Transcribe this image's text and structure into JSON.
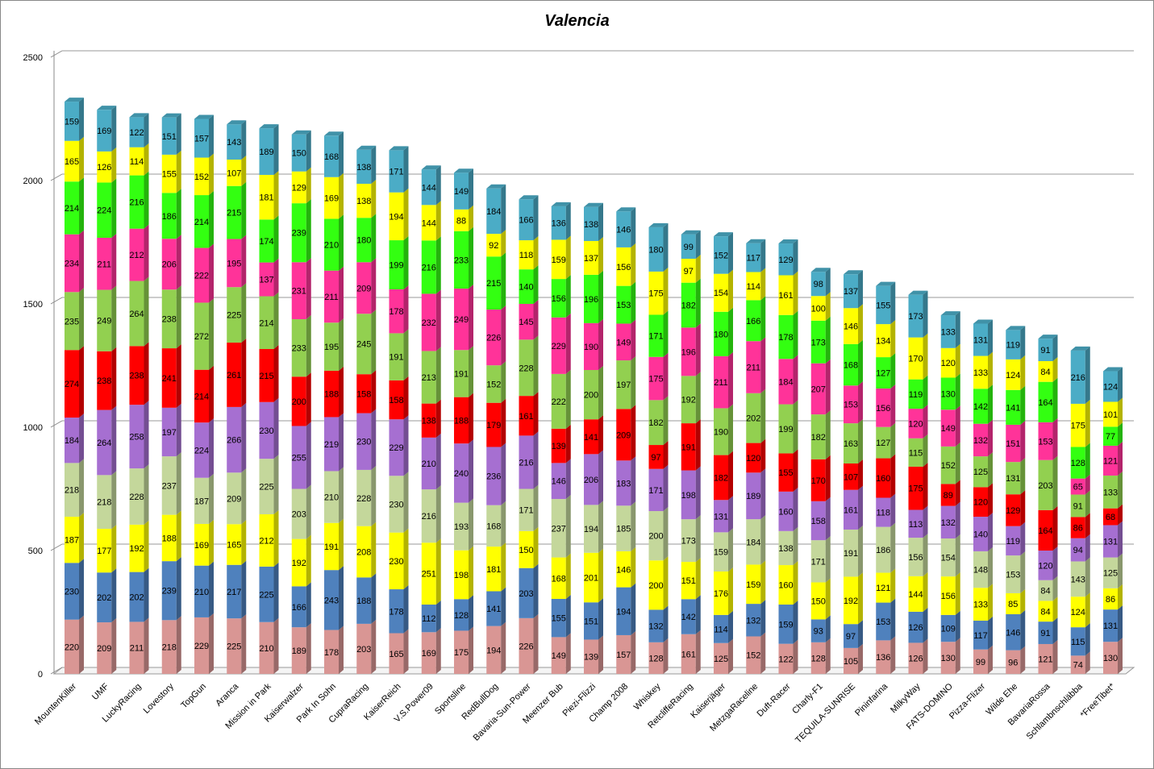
{
  "chart_data": {
    "type": "bar",
    "stacked": true,
    "style": "3d-stacked-column",
    "title": "Valencia",
    "xlabel": "",
    "ylabel": "",
    "ylim": [
      0,
      2500
    ],
    "yticks": [
      0,
      500,
      1000,
      1500,
      2000,
      2500
    ],
    "grid": true,
    "legend": "none",
    "categories": [
      "MountenKiller",
      "UMF",
      "LuckyRacing",
      "Lovestory",
      "TopGun",
      "Aranca",
      "Mission in Park",
      "Kaiserwalzer",
      "Park In Sohn",
      "CupraRacing",
      "KaiserReich",
      "V.S.Power09",
      "Sportsline",
      "RedBullDog",
      "Bavaria-Sun-Power",
      "Meenzer Bub",
      "Piezi-Flizzi",
      "Champ 2008",
      "Whiskey",
      "RetcliffeRacing",
      "Kaiserjäger",
      "MetzgaRaceline",
      "Duft-Racer",
      "Charly-F1",
      "TEQUILA-SUNRISE",
      "Pininfarina",
      "MilkyWay",
      "FATS-DOMINO",
      "Pizza-Flizer",
      "Wilde Ehe",
      "BavariaRossa",
      "Schlambnschläbba",
      "*FreeTibet*"
    ],
    "segment_colors": [
      "#d99694",
      "#4f81bd",
      "#ffff00",
      "#c4d79b",
      "#a66fd1",
      "#ff0000",
      "#92d050",
      "#ff3399",
      "#33ff11",
      "#ffff00",
      "#4bacc6"
    ],
    "stacks": [
      [
        220,
        230,
        187,
        218,
        184,
        274,
        235,
        234,
        214,
        165,
        159
      ],
      [
        209,
        202,
        177,
        218,
        264,
        238,
        249,
        211,
        224,
        126,
        169
      ],
      [
        211,
        202,
        192,
        228,
        258,
        238,
        264,
        212,
        216,
        114,
        122
      ],
      [
        218,
        239,
        188,
        237,
        197,
        241,
        238,
        206,
        186,
        155,
        151
      ],
      [
        229,
        210,
        169,
        187,
        224,
        214,
        272,
        222,
        214,
        152,
        157
      ],
      [
        225,
        217,
        165,
        209,
        266,
        261,
        225,
        195,
        215,
        107,
        143
      ],
      [
        210,
        225,
        212,
        225,
        230,
        215,
        214,
        137,
        174,
        181,
        189
      ],
      [
        189,
        166,
        192,
        203,
        255,
        200,
        233,
        231,
        239,
        129,
        150
      ],
      [
        178,
        243,
        191,
        210,
        219,
        188,
        195,
        211,
        210,
        169,
        168
      ],
      [
        203,
        188,
        208,
        228,
        230,
        158,
        245,
        209,
        180,
        138,
        138
      ],
      [
        165,
        178,
        230,
        230,
        229,
        158,
        191,
        178,
        199,
        194,
        171
      ],
      [
        169,
        112,
        251,
        216,
        210,
        138,
        213,
        232,
        216,
        144,
        144
      ],
      [
        175,
        128,
        198,
        193,
        240,
        188,
        191,
        249,
        233,
        88,
        149
      ],
      [
        194,
        141,
        181,
        168,
        236,
        179,
        152,
        226,
        215,
        92,
        184
      ],
      [
        226,
        203,
        150,
        171,
        216,
        161,
        228,
        145,
        140,
        118,
        166
      ],
      [
        149,
        155,
        168,
        237,
        146,
        139,
        222,
        229,
        156,
        159,
        136
      ],
      [
        139,
        151,
        201,
        194,
        206,
        141,
        200,
        190,
        196,
        137,
        138
      ],
      [
        157,
        194,
        146,
        185,
        183,
        209,
        197,
        149,
        153,
        156,
        146
      ],
      [
        128,
        132,
        200,
        200,
        171,
        97,
        182,
        175,
        171,
        175,
        180
      ],
      [
        161,
        142,
        151,
        173,
        198,
        191,
        192,
        196,
        182,
        97,
        99
      ],
      [
        125,
        114,
        176,
        159,
        131,
        182,
        190,
        211,
        180,
        154,
        152
      ],
      [
        152,
        132,
        159,
        184,
        189,
        120,
        202,
        211,
        166,
        114,
        117
      ],
      [
        122,
        159,
        160,
        138,
        160,
        155,
        199,
        184,
        178,
        161,
        129
      ],
      [
        128,
        93,
        150,
        171,
        158,
        170,
        182,
        207,
        173,
        100,
        98
      ],
      [
        105,
        97,
        192,
        191,
        161,
        107,
        163,
        153,
        168,
        146,
        137
      ],
      [
        136,
        153,
        121,
        186,
        118,
        160,
        127,
        156,
        127,
        134,
        155
      ],
      [
        126,
        126,
        144,
        156,
        113,
        175,
        115,
        120,
        119,
        170,
        173
      ],
      [
        130,
        109,
        156,
        154,
        132,
        89,
        152,
        149,
        130,
        120,
        133
      ],
      [
        99,
        117,
        133,
        148,
        140,
        120,
        125,
        132,
        142,
        133,
        131
      ],
      [
        96,
        146,
        85,
        153,
        119,
        129,
        131,
        151,
        141,
        124,
        119
      ],
      [
        121,
        91,
        84,
        84,
        120,
        164,
        203,
        153,
        164,
        84,
        91
      ],
      [
        74,
        115,
        124,
        143,
        94,
        86,
        91,
        65,
        128,
        175,
        216
      ],
      [
        130,
        131,
        86,
        125,
        131,
        68,
        133,
        121,
        77,
        101,
        124
      ]
    ]
  }
}
